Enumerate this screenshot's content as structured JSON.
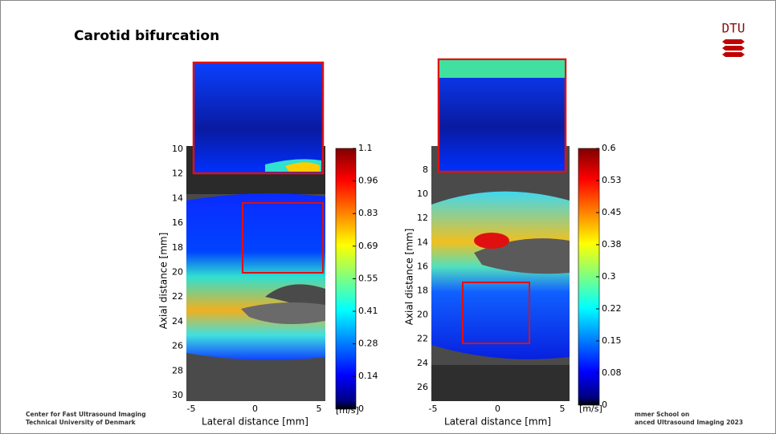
{
  "header": {
    "title": "Carotid bifurcation",
    "logo": "DTU"
  },
  "panels": [
    {
      "yticks": [
        10,
        12,
        14,
        16,
        18,
        20,
        22,
        24,
        26,
        28,
        30
      ],
      "xticks": [
        -5,
        0,
        5
      ],
      "xlabel": "Lateral distance [mm]",
      "ylabel": "Axial distance [mm]",
      "colorbar_ticks": [
        1.1,
        0.96,
        0.83,
        0.69,
        0.55,
        0.41,
        0.28,
        0.14,
        0
      ],
      "colorbar_unit": "[m/s]"
    },
    {
      "yticks": [
        8,
        10,
        12,
        14,
        16,
        18,
        20,
        22,
        24,
        26
      ],
      "xticks": [
        -5,
        0,
        5
      ],
      "xlabel": "Lateral distance [mm]",
      "ylabel": "Axial distance [mm]",
      "colorbar_ticks": [
        0.6,
        0.53,
        0.45,
        0.38,
        0.3,
        0.22,
        0.15,
        0.08,
        0
      ],
      "colorbar_unit": "[m/s]"
    }
  ],
  "footer": {
    "left": [
      "Center for Fast Ultrasound Imaging",
      "Technical University of Denmark"
    ],
    "right": [
      "mmer School on",
      "anced Ultrasound Imaging 2023"
    ]
  }
}
